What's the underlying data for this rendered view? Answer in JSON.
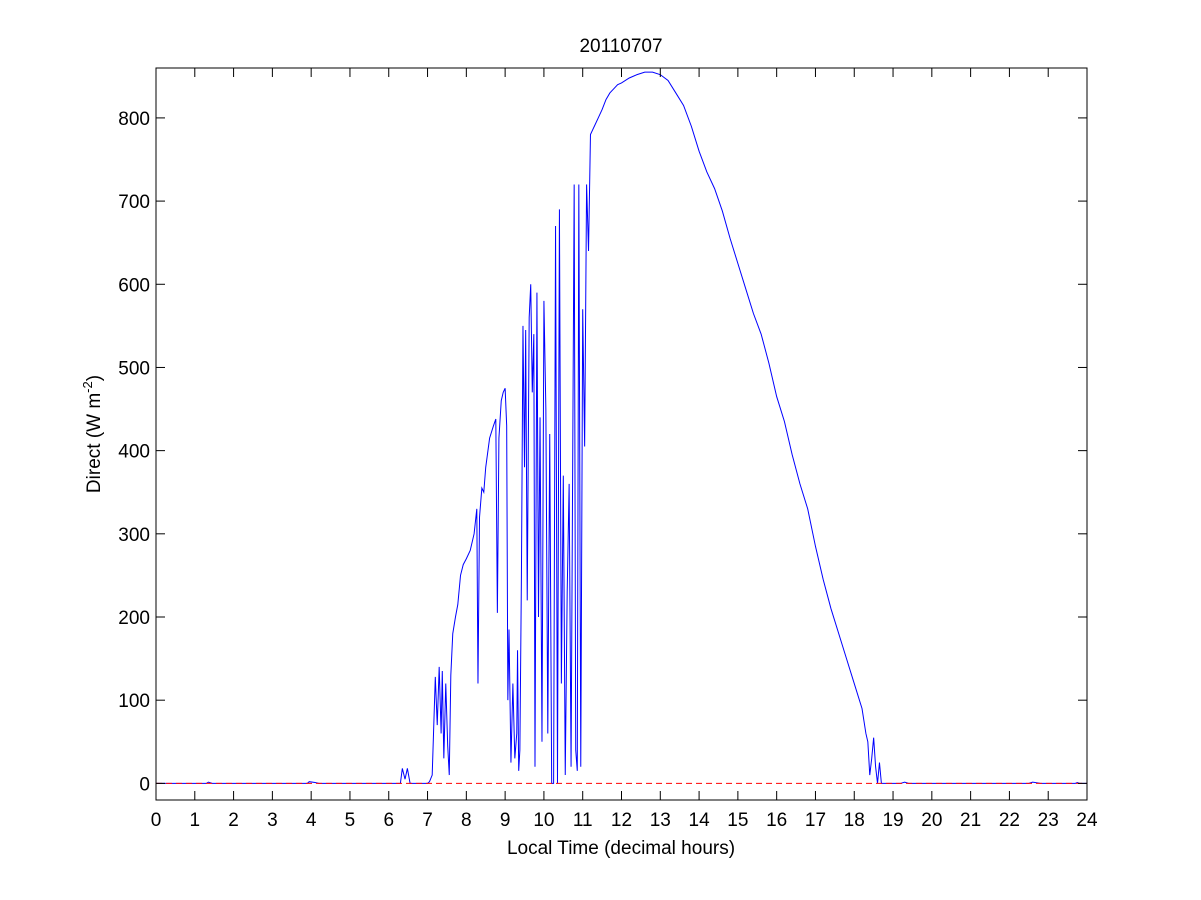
{
  "chart_data": {
    "type": "line",
    "title": "20110707",
    "xlabel": "Local Time (decimal hours)",
    "ylabel": {
      "main": "Direct (W m",
      "sup": "-2",
      "tail": ")"
    },
    "xlim": [
      0,
      24
    ],
    "ylim": [
      -20,
      860
    ],
    "xticks": [
      0,
      1,
      2,
      3,
      4,
      5,
      6,
      7,
      8,
      9,
      10,
      11,
      12,
      13,
      14,
      15,
      16,
      17,
      18,
      19,
      20,
      21,
      22,
      23,
      24
    ],
    "yticks": [
      0,
      100,
      200,
      300,
      400,
      500,
      600,
      700,
      800
    ],
    "grid": false,
    "series": [
      {
        "color": "#0000ff",
        "style": "solid",
        "points": [
          [
            0,
            0
          ],
          [
            1.3,
            0
          ],
          [
            1.35,
            1.5
          ],
          [
            1.45,
            0
          ],
          [
            3.9,
            0
          ],
          [
            3.95,
            2
          ],
          [
            4.1,
            1
          ],
          [
            4.2,
            0
          ],
          [
            6.3,
            0
          ],
          [
            6.35,
            18
          ],
          [
            6.42,
            5
          ],
          [
            6.48,
            18
          ],
          [
            6.55,
            0
          ],
          [
            7.0,
            0
          ],
          [
            7.05,
            2
          ],
          [
            7.12,
            10
          ],
          [
            7.2,
            128
          ],
          [
            7.25,
            70
          ],
          [
            7.3,
            140
          ],
          [
            7.35,
            60
          ],
          [
            7.38,
            135
          ],
          [
            7.42,
            30
          ],
          [
            7.47,
            120
          ],
          [
            7.52,
            45
          ],
          [
            7.56,
            10
          ],
          [
            7.6,
            130
          ],
          [
            7.65,
            180
          ],
          [
            7.72,
            200
          ],
          [
            7.78,
            215
          ],
          [
            7.85,
            250
          ],
          [
            7.92,
            263
          ],
          [
            8.0,
            270
          ],
          [
            8.1,
            280
          ],
          [
            8.2,
            300
          ],
          [
            8.27,
            330
          ],
          [
            8.3,
            120
          ],
          [
            8.34,
            320
          ],
          [
            8.4,
            355
          ],
          [
            8.45,
            350
          ],
          [
            8.5,
            380
          ],
          [
            8.6,
            415
          ],
          [
            8.7,
            430
          ],
          [
            8.76,
            438
          ],
          [
            8.8,
            205
          ],
          [
            8.84,
            415
          ],
          [
            8.9,
            460
          ],
          [
            8.95,
            470
          ],
          [
            9.0,
            475
          ],
          [
            9.04,
            430
          ],
          [
            9.07,
            100
          ],
          [
            9.1,
            185
          ],
          [
            9.15,
            25
          ],
          [
            9.2,
            120
          ],
          [
            9.25,
            30
          ],
          [
            9.3,
            60
          ],
          [
            9.32,
            160
          ],
          [
            9.35,
            15
          ],
          [
            9.38,
            40
          ],
          [
            9.42,
            250
          ],
          [
            9.46,
            550
          ],
          [
            9.5,
            380
          ],
          [
            9.53,
            545
          ],
          [
            9.57,
            220
          ],
          [
            9.62,
            560
          ],
          [
            9.66,
            600
          ],
          [
            9.7,
            470
          ],
          [
            9.74,
            540
          ],
          [
            9.77,
            20
          ],
          [
            9.82,
            590
          ],
          [
            9.86,
            200
          ],
          [
            9.9,
            440
          ],
          [
            9.95,
            50
          ],
          [
            10.0,
            580
          ],
          [
            10.05,
            450
          ],
          [
            10.1,
            60
          ],
          [
            10.15,
            420
          ],
          [
            10.2,
            0
          ],
          [
            10.25,
            0
          ],
          [
            10.3,
            670
          ],
          [
            10.35,
            0
          ],
          [
            10.4,
            690
          ],
          [
            10.45,
            120
          ],
          [
            10.5,
            370
          ],
          [
            10.55,
            10
          ],
          [
            10.6,
            230
          ],
          [
            10.65,
            360
          ],
          [
            10.7,
            20
          ],
          [
            10.78,
            720
          ],
          [
            10.82,
            40
          ],
          [
            10.86,
            15
          ],
          [
            10.9,
            720
          ],
          [
            10.95,
            20
          ],
          [
            11.0,
            570
          ],
          [
            11.05,
            405
          ],
          [
            11.1,
            720
          ],
          [
            11.15,
            640
          ],
          [
            11.2,
            780
          ],
          [
            11.3,
            790
          ],
          [
            11.4,
            800
          ],
          [
            11.5,
            810
          ],
          [
            11.6,
            822
          ],
          [
            11.7,
            830
          ],
          [
            11.8,
            835
          ],
          [
            11.9,
            840
          ],
          [
            12.0,
            842
          ],
          [
            12.2,
            848
          ],
          [
            12.4,
            852
          ],
          [
            12.6,
            855
          ],
          [
            12.8,
            855
          ],
          [
            13.0,
            852
          ],
          [
            13.2,
            845
          ],
          [
            13.4,
            830
          ],
          [
            13.6,
            815
          ],
          [
            13.8,
            790
          ],
          [
            14.0,
            760
          ],
          [
            14.2,
            735
          ],
          [
            14.4,
            715
          ],
          [
            14.6,
            688
          ],
          [
            14.8,
            655
          ],
          [
            15.0,
            625
          ],
          [
            15.2,
            595
          ],
          [
            15.4,
            565
          ],
          [
            15.6,
            540
          ],
          [
            15.8,
            505
          ],
          [
            16.0,
            465
          ],
          [
            16.2,
            435
          ],
          [
            16.4,
            395
          ],
          [
            16.6,
            360
          ],
          [
            16.8,
            330
          ],
          [
            17.0,
            285
          ],
          [
            17.2,
            245
          ],
          [
            17.4,
            210
          ],
          [
            17.6,
            180
          ],
          [
            17.8,
            150
          ],
          [
            18.0,
            120
          ],
          [
            18.2,
            90
          ],
          [
            18.3,
            60
          ],
          [
            18.35,
            50
          ],
          [
            18.4,
            10
          ],
          [
            18.45,
            30
          ],
          [
            18.5,
            55
          ],
          [
            18.55,
            20
          ],
          [
            18.6,
            0
          ],
          [
            18.65,
            25
          ],
          [
            18.7,
            0
          ],
          [
            19.2,
            0
          ],
          [
            19.3,
            1.5
          ],
          [
            19.4,
            0
          ],
          [
            22.5,
            0
          ],
          [
            22.6,
            1.5
          ],
          [
            22.8,
            0
          ],
          [
            23.7,
            0
          ],
          [
            23.75,
            1
          ],
          [
            23.8,
            0
          ],
          [
            24,
            0
          ]
        ]
      },
      {
        "color": "#ff0000",
        "style": "dashed",
        "points": [
          [
            0,
            0
          ],
          [
            24,
            0
          ]
        ]
      }
    ]
  }
}
